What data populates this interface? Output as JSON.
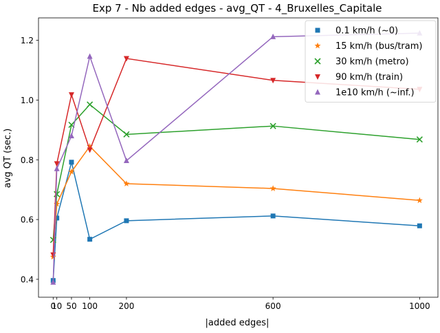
{
  "chart_data": {
    "type": "line",
    "title": "Exp 7 - Nb added edges - avg_QT - 4_Bruxelles_Capitale",
    "xlabel": "|added edges|",
    "ylabel": "avg QT (sec.)",
    "x": [
      0,
      10,
      50,
      100,
      200,
      600,
      1000
    ],
    "xticks": [
      0,
      10,
      50,
      100,
      200,
      600,
      1000
    ],
    "xlim": [
      -40,
      1050
    ],
    "yticks": [
      0.4,
      0.6,
      0.8,
      1.0,
      1.2
    ],
    "ylim": [
      0.34,
      1.275
    ],
    "legend_position": "upper-right",
    "series": [
      {
        "name": "0.1 km/h (~0)",
        "color": "#1f77b4",
        "marker": "square",
        "values": [
          0.396,
          0.605,
          0.792,
          0.534,
          0.596,
          0.612,
          0.579
        ]
      },
      {
        "name": "15 km/h (bus/tram)",
        "color": "#ff7f0e",
        "marker": "star",
        "values": [
          0.475,
          0.652,
          0.76,
          0.845,
          0.72,
          0.704,
          0.664
        ]
      },
      {
        "name": "30 km/h (metro)",
        "color": "#2ca02c",
        "marker": "x",
        "values": [
          0.532,
          0.685,
          0.917,
          0.985,
          0.885,
          0.913,
          0.868
        ]
      },
      {
        "name": "90 km/h (train)",
        "color": "#d62728",
        "marker": "triangle-down",
        "values": [
          0.482,
          0.787,
          1.018,
          0.833,
          1.139,
          1.066,
          1.036
        ]
      },
      {
        "name": "1e10 km/h (~inf.)",
        "color": "#9467bd",
        "marker": "triangle-up",
        "values": [
          0.39,
          0.77,
          0.88,
          1.146,
          0.797,
          1.212,
          1.224
        ]
      }
    ]
  }
}
